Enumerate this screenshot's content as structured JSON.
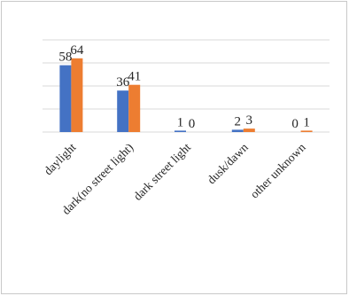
{
  "chart_data": {
    "type": "bar",
    "categories": [
      "daylight",
      "dark(no street light)",
      "dark street light",
      "dusk/dawn",
      "other unknown"
    ],
    "series": [
      {
        "values": [
          58,
          36,
          1,
          2,
          0
        ],
        "color": "#4472C4"
      },
      {
        "values": [
          64,
          41,
          0,
          3,
          1
        ],
        "color": "#ED7D31"
      }
    ],
    "data_labels": [
      [
        "58",
        "36",
        "1",
        "2",
        "0"
      ],
      [
        "64",
        "41",
        "0",
        "3",
        "1"
      ]
    ],
    "ylim": [
      0,
      80
    ],
    "grid": true,
    "legend": "none"
  }
}
